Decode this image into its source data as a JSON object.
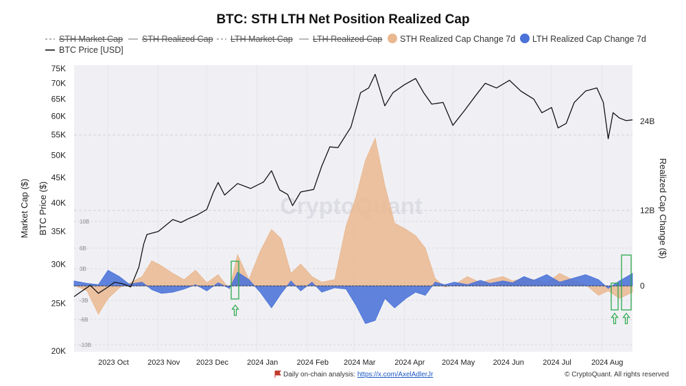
{
  "chart_data": {
    "type": "line",
    "title": "BTC: STH LTH Net Position Realized Cap",
    "legend": [
      {
        "label": "STH Market Cap",
        "style": "dashed",
        "hidden": true,
        "color": "#999999"
      },
      {
        "label": "STH Realized Cap",
        "style": "solid",
        "hidden": true,
        "color": "#999999"
      },
      {
        "label": "LTH Market Cap",
        "style": "dashed",
        "hidden": true,
        "color": "#999999"
      },
      {
        "label": "LTH Realized Cap",
        "style": "solid",
        "hidden": true,
        "color": "#999999"
      },
      {
        "label": "STH Realized Cap Change 7d",
        "style": "area",
        "hidden": false,
        "color": "#eab890"
      },
      {
        "label": "LTH Realized Cap Change 7d",
        "style": "area",
        "hidden": false,
        "color": "#4a72d8"
      },
      {
        "label": "BTC Price [USD]",
        "style": "solid",
        "hidden": false,
        "color": "#111111"
      }
    ],
    "y_left_label": "Market Cap ($)",
    "y_left2_label": "BTC Price ($)",
    "y_right_label": "Realized Cap Change ($)",
    "y_left_scale": "log",
    "y_left_ticks": [
      "75K",
      "70K",
      "65K",
      "60K",
      "55K",
      "50K",
      "45K",
      "40K",
      "35K",
      "30K",
      "25K",
      "20K"
    ],
    "y_left_tick_values": [
      75000,
      70000,
      65000,
      60000,
      55000,
      50000,
      45000,
      40000,
      35000,
      30000,
      25000,
      20000
    ],
    "y_right_ticks": [
      "24B",
      "12B",
      "0"
    ],
    "y_right_tick_values": [
      24,
      12,
      0
    ],
    "inner_ticks": [
      "10B",
      "6B",
      "3B",
      "-3B",
      "-6B",
      "-10B"
    ],
    "x_ticks": [
      "2023 Oct",
      "2023 Nov",
      "2023 Dec",
      "2024 Jan",
      "2024 Feb",
      "2024 Mar",
      "2024 Apr",
      "2024 May",
      "2024 Jun",
      "2024 Jul",
      "2024 Aug"
    ],
    "x_tick_dates": [
      "2023-10-01",
      "2023-11-01",
      "2023-12-01",
      "2024-01-01",
      "2024-02-01",
      "2024-03-01",
      "2024-04-01",
      "2024-05-01",
      "2024-06-01",
      "2024-07-01",
      "2024-08-01"
    ],
    "x_range": [
      "2023-09-10",
      "2024-08-20"
    ],
    "grid": true,
    "watermark": "CryptoQuant",
    "footer_left": "Daily on-chain analysis: ",
    "footer_link": "https://x.com/AxelAdlerJr",
    "footer_right": "© CryptoQuant. All rights reserved",
    "price_series": {
      "name": "BTC Price [USD]",
      "dates": [
        "2023-09-10",
        "2023-09-15",
        "2023-09-20",
        "2023-09-25",
        "2023-10-01",
        "2023-10-05",
        "2023-10-10",
        "2023-10-15",
        "2023-10-20",
        "2023-10-23",
        "2023-10-25",
        "2023-11-01",
        "2023-11-10",
        "2023-11-15",
        "2023-11-20",
        "2023-11-25",
        "2023-12-01",
        "2023-12-05",
        "2023-12-08",
        "2023-12-12",
        "2023-12-20",
        "2023-12-28",
        "2024-01-05",
        "2024-01-10",
        "2024-01-15",
        "2024-01-20",
        "2024-01-23",
        "2024-01-28",
        "2024-02-05",
        "2024-02-10",
        "2024-02-15",
        "2024-02-20",
        "2024-02-28",
        "2024-03-05",
        "2024-03-10",
        "2024-03-14",
        "2024-03-20",
        "2024-03-25",
        "2024-04-01",
        "2024-04-08",
        "2024-04-13",
        "2024-04-18",
        "2024-04-25",
        "2024-05-01",
        "2024-05-08",
        "2024-05-15",
        "2024-05-21",
        "2024-05-28",
        "2024-06-05",
        "2024-06-12",
        "2024-06-20",
        "2024-06-25",
        "2024-07-01",
        "2024-07-05",
        "2024-07-10",
        "2024-07-15",
        "2024-07-22",
        "2024-07-29",
        "2024-08-02",
        "2024-08-05",
        "2024-08-08",
        "2024-08-12",
        "2024-08-16",
        "2024-08-20"
      ],
      "values": [
        25800,
        26500,
        27200,
        26200,
        27000,
        27600,
        27400,
        27000,
        29600,
        33000,
        34500,
        35000,
        37000,
        36500,
        37200,
        37800,
        38800,
        42000,
        44000,
        41500,
        43800,
        42800,
        44100,
        46500,
        42500,
        41600,
        39500,
        42100,
        42600,
        47500,
        52000,
        51800,
        57000,
        67000,
        68500,
        73000,
        63000,
        67000,
        69500,
        71600,
        67000,
        63500,
        64000,
        57500,
        61500,
        66000,
        70000,
        68500,
        71000,
        67500,
        65000,
        61000,
        62500,
        56800,
        58000,
        64000,
        67500,
        68500,
        64000,
        54000,
        61000,
        59500,
        58800,
        59000
      ]
    },
    "series": [
      {
        "name": "STH Realized Cap Change 7d",
        "color": "#eab890",
        "dates": [
          "2023-09-10",
          "2023-09-18",
          "2023-09-25",
          "2023-10-01",
          "2023-10-08",
          "2023-10-14",
          "2023-10-22",
          "2023-10-28",
          "2023-11-03",
          "2023-11-10",
          "2023-11-17",
          "2023-11-24",
          "2023-12-01",
          "2023-12-08",
          "2023-12-15",
          "2023-12-20",
          "2023-12-27",
          "2024-01-03",
          "2024-01-10",
          "2024-01-16",
          "2024-01-22",
          "2024-01-28",
          "2024-02-04",
          "2024-02-10",
          "2024-02-18",
          "2024-02-25",
          "2024-03-02",
          "2024-03-08",
          "2024-03-14",
          "2024-03-20",
          "2024-03-26",
          "2024-04-02",
          "2024-04-08",
          "2024-04-14",
          "2024-04-20",
          "2024-04-26",
          "2024-05-02",
          "2024-05-10",
          "2024-05-18",
          "2024-05-24",
          "2024-06-01",
          "2024-06-07",
          "2024-06-14",
          "2024-06-20",
          "2024-06-28",
          "2024-07-06",
          "2024-07-14",
          "2024-07-22",
          "2024-07-30",
          "2024-08-05",
          "2024-08-12",
          "2024-08-20"
        ],
        "values": [
          0.1,
          -0.8,
          -4.5,
          -2.0,
          -0.3,
          0.4,
          1.5,
          4.0,
          3.2,
          2.0,
          1.0,
          2.5,
          0.5,
          1.8,
          -0.5,
          5.0,
          1.0,
          5.5,
          9.0,
          7.5,
          2.0,
          3.5,
          1.5,
          0.6,
          1.0,
          9.5,
          14.0,
          20.0,
          23.5,
          16.0,
          10.0,
          9.0,
          8.0,
          6.0,
          1.2,
          -0.2,
          0.2,
          1.5,
          0.5,
          1.0,
          1.5,
          0.8,
          1.2,
          1.0,
          0.5,
          2.0,
          1.0,
          0.2,
          -1.5,
          -0.8,
          -2.0,
          -1.0
        ]
      },
      {
        "name": "LTH Realized Cap Change 7d",
        "color": "#4a72d8",
        "dates": [
          "2023-09-10",
          "2023-09-18",
          "2023-09-25",
          "2023-10-01",
          "2023-10-08",
          "2023-10-14",
          "2023-10-22",
          "2023-10-28",
          "2023-11-03",
          "2023-11-10",
          "2023-11-17",
          "2023-11-24",
          "2023-12-01",
          "2023-12-08",
          "2023-12-15",
          "2023-12-20",
          "2023-12-27",
          "2024-01-03",
          "2024-01-10",
          "2024-01-16",
          "2024-01-22",
          "2024-01-28",
          "2024-02-04",
          "2024-02-10",
          "2024-02-18",
          "2024-02-25",
          "2024-03-02",
          "2024-03-08",
          "2024-03-14",
          "2024-03-20",
          "2024-03-26",
          "2024-04-02",
          "2024-04-08",
          "2024-04-14",
          "2024-04-20",
          "2024-04-26",
          "2024-05-02",
          "2024-05-10",
          "2024-05-18",
          "2024-05-24",
          "2024-06-01",
          "2024-06-07",
          "2024-06-14",
          "2024-06-20",
          "2024-06-28",
          "2024-07-06",
          "2024-07-14",
          "2024-07-22",
          "2024-07-30",
          "2024-08-05",
          "2024-08-12",
          "2024-08-20"
        ],
        "values": [
          0.8,
          0.4,
          0.2,
          2.5,
          1.5,
          0.3,
          0.6,
          -0.6,
          -1.2,
          -1.0,
          -0.5,
          0.2,
          -0.8,
          0.5,
          -0.4,
          2.2,
          1.0,
          -1.0,
          -3.5,
          -1.2,
          0.8,
          -0.8,
          0.6,
          -1.0,
          -0.3,
          -0.5,
          -3.0,
          -6.0,
          -5.5,
          -2.0,
          -3.5,
          -2.0,
          -1.0,
          -1.5,
          0.6,
          0.2,
          0.6,
          0.2,
          0.9,
          0.4,
          0.8,
          0.5,
          1.5,
          0.9,
          1.8,
          0.6,
          1.2,
          1.8,
          1.0,
          -0.4,
          0.8,
          2.0
        ]
      }
    ]
  }
}
